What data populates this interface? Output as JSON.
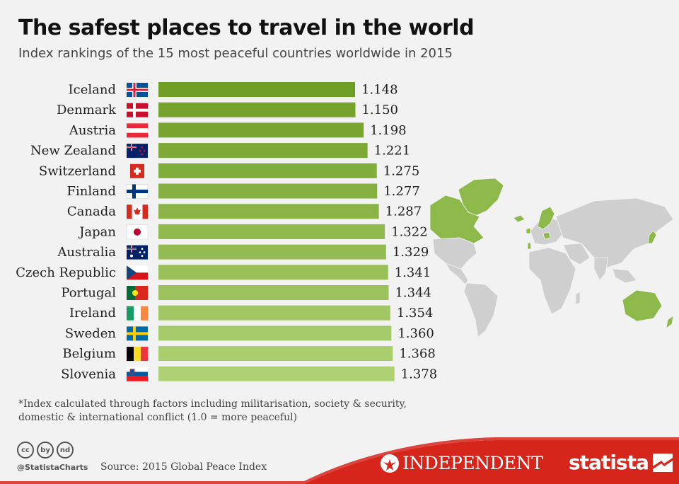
{
  "title": "The safest places to travel in the world",
  "subtitle": "Index rankings of the 15 most peaceful countries worldwide in 2015",
  "chart_data": {
    "type": "bar",
    "orientation": "horizontal",
    "categories": [
      "Iceland",
      "Denmark",
      "Austria",
      "New Zealand",
      "Switzerland",
      "Finland",
      "Canada",
      "Japan",
      "Australia",
      "Czech Republic",
      "Portugal",
      "Ireland",
      "Sweden",
      "Belgium",
      "Slovenia"
    ],
    "values": [
      1.148,
      1.15,
      1.198,
      1.221,
      1.275,
      1.277,
      1.287,
      1.322,
      1.329,
      1.341,
      1.344,
      1.354,
      1.36,
      1.368,
      1.378
    ],
    "labels": [
      "1.148",
      "1.150",
      "1.198",
      "1.221",
      "1.275",
      "1.277",
      "1.287",
      "1.322",
      "1.329",
      "1.341",
      "1.344",
      "1.354",
      "1.360",
      "1.368",
      "1.378"
    ],
    "title": "The safest places to travel in the world",
    "subtitle": "Index rankings of the 15 most peaceful countries worldwide in 2015",
    "xlabel": "",
    "ylabel": "",
    "grid": false,
    "colors": {
      "dark": "#6f9e25",
      "light": "#aed174"
    }
  },
  "footnote": {
    "line1": "*Index calculated through factors including militarisation, society & security,",
    "line2": "domestic & international conflict (1.0 = more peaceful)"
  },
  "footer": {
    "handle": "@StatistaCharts",
    "source": "Source: 2015 Global Peace Index",
    "independent": "INDEPENDENT",
    "statista": "statista",
    "cc_icons": [
      "cc",
      "by",
      "nd"
    ],
    "band_color": "#d6261c"
  },
  "map": {
    "base_color": "#cfcfcf",
    "highlight_color": "#8db84a"
  }
}
